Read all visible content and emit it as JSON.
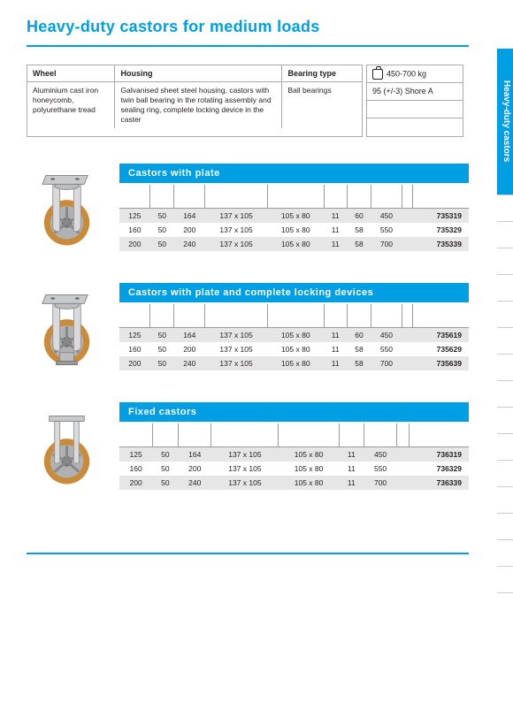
{
  "title": "Heavy-duty castors for medium loads",
  "colors": {
    "accent": "#009fe3",
    "text": "#231f20",
    "grid": "#aaa",
    "stripe": "#e6e6e6"
  },
  "side_tab": "Heavy-duty castors",
  "spec": {
    "headers": {
      "wheel": "Wheel",
      "housing": "Housing",
      "bearing": "Bearing type"
    },
    "wheel": "Aluminium cast iron honeycomb, polyurethane tread",
    "housing": "Galvanised sheet steel housing, castors with twin ball bearing in the rotating assembly and sealing ring, complete locking device in the caster",
    "bearing": "Ball bearings",
    "load": "450-700 kg",
    "shore": "95 (+/-3) Shore A"
  },
  "sections": [
    {
      "title": "Castors with plate",
      "cols": 10,
      "rows": [
        [
          "125",
          "50",
          "164",
          "137 x 105",
          "105 x 80",
          "11",
          "60",
          "450",
          "",
          "735319"
        ],
        [
          "160",
          "50",
          "200",
          "137 x 105",
          "105 x 80",
          "11",
          "58",
          "550",
          "",
          "735329"
        ],
        [
          "200",
          "50",
          "240",
          "137 x 105",
          "105 x 80",
          "11",
          "58",
          "700",
          "",
          "735339"
        ]
      ]
    },
    {
      "title": "Castors with plate and complete locking devices",
      "cols": 10,
      "rows": [
        [
          "125",
          "50",
          "164",
          "137 x 105",
          "105 x 80",
          "11",
          "60",
          "450",
          "",
          "735619"
        ],
        [
          "160",
          "50",
          "200",
          "137 x 105",
          "105 x 80",
          "11",
          "58",
          "550",
          "",
          "735629"
        ],
        [
          "200",
          "50",
          "240",
          "137 x 105",
          "105 x 80",
          "11",
          "58",
          "700",
          "",
          "735639"
        ]
      ]
    },
    {
      "title": "Fixed castors",
      "cols": 9,
      "rows": [
        [
          "125",
          "50",
          "164",
          "137 x 105",
          "105 x 80",
          "11",
          "450",
          "",
          "736319"
        ],
        [
          "160",
          "50",
          "200",
          "137 x 105",
          "105 x 80",
          "11",
          "550",
          "",
          "736329"
        ],
        [
          "200",
          "50",
          "240",
          "137 x 105",
          "105 x 80",
          "11",
          "700",
          "",
          "736339"
        ]
      ]
    }
  ]
}
